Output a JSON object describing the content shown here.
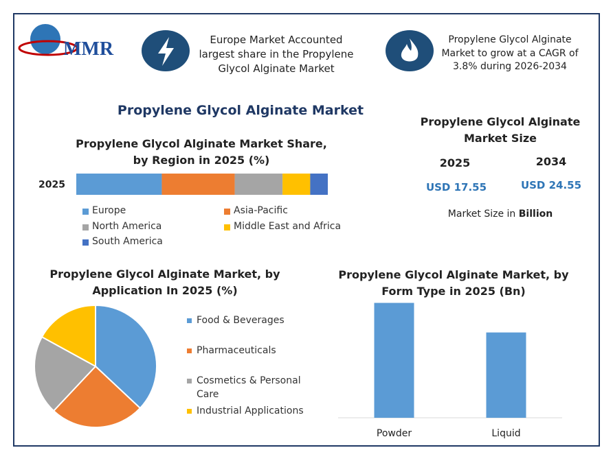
{
  "header": {
    "brand": "MMR",
    "facts": [
      [
        "Europe Market Accounted",
        "largest share in the Propylene",
        "Glycol Alginate Market"
      ],
      [
        "Propylene Glycol Alginate",
        "Market to grow at a CAGR of",
        "3.8% during 2026-2034"
      ]
    ]
  },
  "title": "Propylene Glycol Alginate Market",
  "market_size": {
    "title": "Propylene Glycol Alginate Market Size",
    "years": [
      {
        "year": "2025",
        "value": "USD 17.55"
      },
      {
        "year": "2034",
        "value": "USD 24.55"
      }
    ],
    "note": "Market Size in",
    "unit": "Billion"
  },
  "chart_data": [
    {
      "type": "stacked-bar",
      "title": "Propylene Glycol Alginate Market Share, by Region in 2025 (%)",
      "categories": [
        "2025"
      ],
      "xlim": [
        0,
        100
      ],
      "series": [
        {
          "name": "Europe",
          "color": "#5b9bd5",
          "values": [
            34
          ]
        },
        {
          "name": "Asia-Pacific",
          "color": "#ed7d31",
          "values": [
            29
          ]
        },
        {
          "name": "North America",
          "color": "#a5a5a5",
          "values": [
            19
          ]
        },
        {
          "name": "Middle East and Africa",
          "color": "#ffc000",
          "values": [
            11
          ]
        },
        {
          "name": "South America",
          "color": "#4472c4",
          "values": [
            7
          ]
        }
      ]
    },
    {
      "type": "pie",
      "title": "Propylene Glycol Alginate Market, by Application In 2025 (%)",
      "categories": [
        "Food & Beverages",
        "Pharmaceuticals",
        "Cosmetics & Personal Care",
        "Industrial Applications"
      ],
      "values": [
        37,
        25,
        21,
        17
      ],
      "colors": [
        "#5b9bd5",
        "#ed7d31",
        "#a5a5a5",
        "#ffc000"
      ]
    },
    {
      "type": "bar",
      "title": "Propylene Glycol Alginate Market, by Form Type in 2025 (Bn)",
      "categories": [
        "Powder",
        "Liquid"
      ],
      "values": [
        10.1,
        7.5
      ],
      "color": "#5b9bd5",
      "ylim": [
        0,
        12
      ]
    }
  ]
}
